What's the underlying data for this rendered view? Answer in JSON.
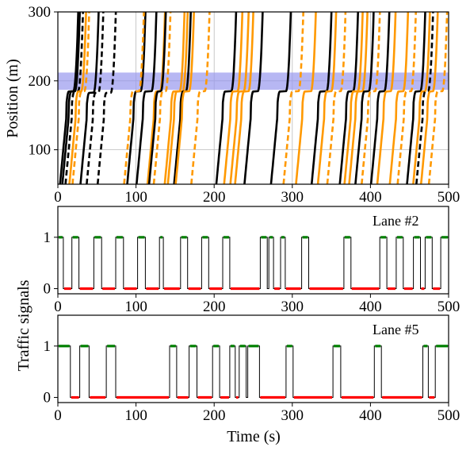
{
  "chart_data": [
    {
      "type": "line",
      "panel": "trajectories",
      "xlabel": "",
      "ylabel": "Position (m)",
      "xlim": [
        0,
        500
      ],
      "ylim": [
        50,
        300
      ],
      "xticks": [
        0,
        100,
        200,
        300,
        400,
        500
      ],
      "yticks": [
        100,
        200,
        300
      ],
      "grid": true,
      "highlight_band": {
        "y": [
          187,
          212
        ],
        "color": "#9999ee"
      },
      "colors": {
        "solid_dark": "#000000",
        "dashed_dark": "#000000",
        "solid_orange": "#ff9900",
        "dashed_orange": "#ff9900"
      },
      "trajectories": [
        {
          "color": "dark",
          "style": "solid",
          "t_arrive": 14,
          "t_depart": 20,
          "stop_y": 185
        },
        {
          "color": "dark",
          "style": "solid",
          "t_arrive": 17,
          "t_depart": 22,
          "stop_y": 185
        },
        {
          "color": "dark",
          "style": "dashed",
          "t_arrive": 21,
          "t_depart": 26,
          "stop_y": 185
        },
        {
          "color": "orange",
          "style": "solid",
          "t_arrive": 26,
          "t_depart": 30,
          "stop_y": 185
        },
        {
          "color": "orange",
          "style": "dashed",
          "t_arrive": 30,
          "t_depart": 34,
          "stop_y": 185
        },
        {
          "color": "dark",
          "style": "solid",
          "t_arrive": 40,
          "t_depart": 46,
          "stop_y": 183
        },
        {
          "color": "dark",
          "style": "dashed",
          "t_arrive": 48,
          "t_depart": 52,
          "stop_y": 183
        },
        {
          "color": "dark",
          "style": "dashed",
          "t_arrive": 62,
          "t_depart": 68,
          "stop_y": 183
        },
        {
          "color": "dark",
          "style": "solid",
          "t_arrive": 100,
          "t_depart": 106,
          "stop_y": 185
        },
        {
          "color": "orange",
          "style": "dashed",
          "t_arrive": 96,
          "t_depart": 104,
          "stop_y": 185
        },
        {
          "color": "dark",
          "style": "solid",
          "t_arrive": 112,
          "t_depart": 120,
          "stop_y": 185
        },
        {
          "color": "orange",
          "style": "solid",
          "t_arrive": 126,
          "t_depart": 131,
          "stop_y": 185
        },
        {
          "color": "dark",
          "style": "solid",
          "t_arrive": 128,
          "t_depart": 132,
          "stop_y": 185
        },
        {
          "color": "orange",
          "style": "dashed",
          "t_arrive": 134,
          "t_depart": 138,
          "stop_y": 185
        },
        {
          "color": "orange",
          "style": "solid",
          "t_arrive": 148,
          "t_depart": 156,
          "stop_y": 185
        },
        {
          "color": "orange",
          "style": "solid",
          "t_arrive": 152,
          "t_depart": 160,
          "stop_y": 185
        },
        {
          "color": "dark",
          "style": "solid",
          "t_arrive": 160,
          "t_depart": 164,
          "stop_y": 185
        },
        {
          "color": "orange",
          "style": "solid",
          "t_arrive": 162,
          "t_depart": 168,
          "stop_y": 185
        },
        {
          "color": "orange",
          "style": "dashed",
          "t_arrive": 182,
          "t_depart": 188,
          "stop_y": 185
        },
        {
          "color": "dark",
          "style": "solid",
          "t_arrive": 214,
          "t_depart": 222,
          "stop_y": 185
        },
        {
          "color": "orange",
          "style": "solid",
          "t_arrive": 224,
          "t_depart": 230,
          "stop_y": 185
        },
        {
          "color": "orange",
          "style": "solid",
          "t_arrive": 232,
          "t_depart": 238,
          "stop_y": 185
        },
        {
          "color": "orange",
          "style": "solid",
          "t_arrive": 238,
          "t_depart": 244,
          "stop_y": 185
        },
        {
          "color": "dark",
          "style": "solid",
          "t_arrive": 250,
          "t_depart": 256,
          "stop_y": 185
        },
        {
          "color": "dark",
          "style": "solid",
          "t_arrive": 284,
          "t_depart": 292,
          "stop_y": 185
        },
        {
          "color": "orange",
          "style": "dashed",
          "t_arrive": 300,
          "t_depart": 308,
          "stop_y": 185
        },
        {
          "color": "orange",
          "style": "solid",
          "t_arrive": 316,
          "t_depart": 324,
          "stop_y": 185
        },
        {
          "color": "dark",
          "style": "solid",
          "t_arrive": 336,
          "t_depart": 344,
          "stop_y": 185
        },
        {
          "color": "orange",
          "style": "solid",
          "t_arrive": 344,
          "t_depart": 350,
          "stop_y": 185
        },
        {
          "color": "orange",
          "style": "dashed",
          "t_arrive": 356,
          "t_depart": 362,
          "stop_y": 185
        },
        {
          "color": "dark",
          "style": "solid",
          "t_arrive": 372,
          "t_depart": 378,
          "stop_y": 185
        },
        {
          "color": "orange",
          "style": "solid",
          "t_arrive": 378,
          "t_depart": 384,
          "stop_y": 185
        },
        {
          "color": "orange",
          "style": "solid",
          "t_arrive": 384,
          "t_depart": 390,
          "stop_y": 185
        },
        {
          "color": "dark",
          "style": "solid",
          "t_arrive": 392,
          "t_depart": 398,
          "stop_y": 185
        },
        {
          "color": "orange",
          "style": "dashed",
          "t_arrive": 400,
          "t_depart": 406,
          "stop_y": 185
        },
        {
          "color": "dark",
          "style": "solid",
          "t_arrive": 412,
          "t_depart": 418,
          "stop_y": 185
        },
        {
          "color": "orange",
          "style": "solid",
          "t_arrive": 420,
          "t_depart": 426,
          "stop_y": 185
        },
        {
          "color": "orange",
          "style": "solid",
          "t_arrive": 436,
          "t_depart": 442,
          "stop_y": 185
        },
        {
          "color": "orange",
          "style": "dashed",
          "t_arrive": 446,
          "t_depart": 452,
          "stop_y": 185
        },
        {
          "color": "dark",
          "style": "solid",
          "t_arrive": 458,
          "t_depart": 464,
          "stop_y": 185
        },
        {
          "color": "orange",
          "style": "solid",
          "t_arrive": 466,
          "t_depart": 470,
          "stop_y": 185
        },
        {
          "color": "dark",
          "style": "dashed",
          "t_arrive": 470,
          "t_depart": 474,
          "stop_y": 185
        },
        {
          "color": "orange",
          "style": "solid",
          "t_arrive": 476,
          "t_depart": 480,
          "stop_y": 185
        },
        {
          "color": "orange",
          "style": "dashed",
          "t_arrive": 486,
          "t_depart": 492,
          "stop_y": 185
        }
      ]
    },
    {
      "type": "line",
      "panel": "lane-2",
      "label": "Lane #2",
      "xlabel": "",
      "ylabel": "",
      "xlim": [
        0,
        500
      ],
      "ylim": [
        -0.1,
        1.6
      ],
      "xticks": [
        0,
        100,
        200,
        300,
        400,
        500
      ],
      "yticks": [
        0,
        1
      ],
      "colors": {
        "green": "#008000",
        "red": "#ff0000",
        "edge": "#000000"
      },
      "green_intervals": [
        [
          0,
          7
        ],
        [
          18,
          27
        ],
        [
          46,
          56
        ],
        [
          74,
          84
        ],
        [
          102,
          112
        ],
        [
          130,
          135
        ],
        [
          157,
          166
        ],
        [
          184,
          193
        ],
        [
          211,
          220
        ],
        [
          259,
          268
        ],
        [
          270,
          276
        ],
        [
          285,
          291
        ],
        [
          312,
          321
        ],
        [
          366,
          375
        ],
        [
          412,
          421
        ],
        [
          433,
          442
        ],
        [
          455,
          464
        ],
        [
          470,
          479
        ],
        [
          490,
          500
        ]
      ]
    },
    {
      "type": "line",
      "panel": "lane-5",
      "label": "Lane #5",
      "xlabel": "Time (s)",
      "ylabel": "",
      "xlim": [
        0,
        500
      ],
      "ylim": [
        -0.1,
        1.6
      ],
      "xticks": [
        0,
        100,
        200,
        300,
        400,
        500
      ],
      "yticks": [
        0,
        1
      ],
      "colors": {
        "green": "#008000",
        "red": "#ff0000",
        "edge": "#000000"
      },
      "green_intervals": [
        [
          0,
          16
        ],
        [
          28,
          40
        ],
        [
          62,
          74
        ],
        [
          143,
          152
        ],
        [
          168,
          178
        ],
        [
          198,
          207
        ],
        [
          220,
          227
        ],
        [
          232,
          241
        ],
        [
          243,
          258
        ],
        [
          292,
          301
        ],
        [
          352,
          362
        ],
        [
          405,
          414
        ],
        [
          467,
          474
        ],
        [
          483,
          500
        ]
      ]
    }
  ],
  "shared_ylabel": "Traffic signals"
}
